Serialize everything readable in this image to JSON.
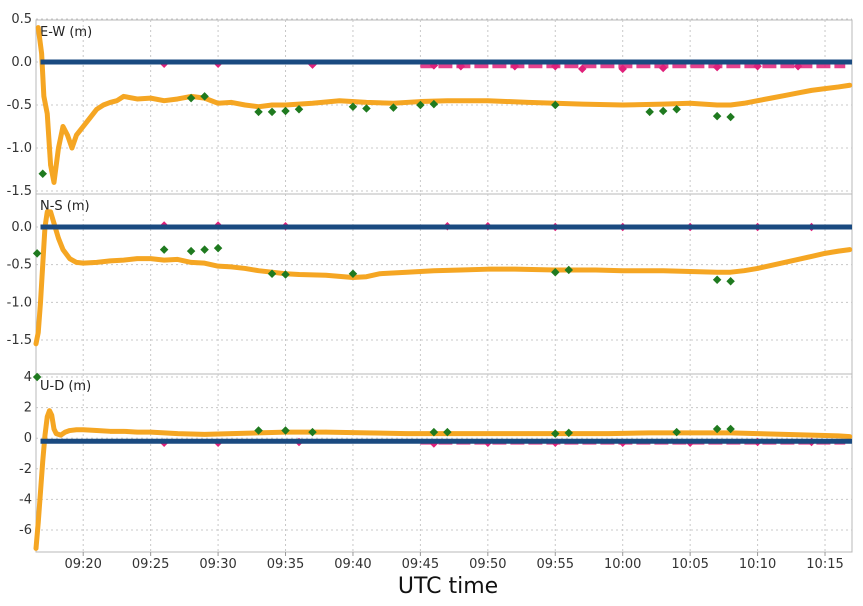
{
  "chart_data": {
    "type": "scatter",
    "xlabel": "UTC time",
    "x_range": [
      "09:16:30",
      "10:17:00"
    ],
    "x_ticks": [
      "09:20",
      "09:25",
      "09:30",
      "09:35",
      "09:40",
      "09:45",
      "09:50",
      "09:55",
      "10:00",
      "10:05",
      "10:10",
      "10:15"
    ],
    "grid": true,
    "colors": {
      "fix": "#f5a623",
      "float": "#1f7a1f",
      "ppp": "#e0207a",
      "reference": "#1a4a80"
    },
    "panels": [
      {
        "label": "E-W (m)",
        "ylim": [
          -1.5,
          0.5
        ],
        "yticks": [
          "0.5",
          "0.0",
          "-0.5",
          "-1.0",
          "-1.5"
        ],
        "series": [
          {
            "color": "fix",
            "x": [
              "09:16:40",
              "09:16:55",
              "09:17:05",
              "09:17:20",
              "09:17:35",
              "09:17:50",
              "09:18:10",
              "09:18:30",
              "09:18:50",
              "09:19:10",
              "09:19:30",
              "09:20:00",
              "09:20:30",
              "09:21:00",
              "09:21:30",
              "09:22:00",
              "09:22:30",
              "09:23:00",
              "09:24:00",
              "09:25:00",
              "09:26:00",
              "09:27:00",
              "09:28:00",
              "09:29:00",
              "09:30:00",
              "09:31:00",
              "09:32:00",
              "09:33:00",
              "09:34:00",
              "09:35:00",
              "09:37:00",
              "09:39:00",
              "09:41:00",
              "09:43:00",
              "09:45:00",
              "09:47:00",
              "09:50:00",
              "09:53:00",
              "09:55:00",
              "09:57:00",
              "10:00:00",
              "10:03:00",
              "10:05:00",
              "10:07:00",
              "10:08:00",
              "10:09:00",
              "10:10:00",
              "10:11:00",
              "10:12:00",
              "10:13:00",
              "10:14:00",
              "10:15:00",
              "10:16:00",
              "10:16:50"
            ],
            "y": [
              0.4,
              0.1,
              -0.4,
              -0.6,
              -1.2,
              -1.4,
              -1.0,
              -0.75,
              -0.85,
              -1.0,
              -0.85,
              -0.75,
              -0.65,
              -0.55,
              -0.5,
              -0.47,
              -0.45,
              -0.4,
              -0.43,
              -0.42,
              -0.45,
              -0.43,
              -0.4,
              -0.42,
              -0.48,
              -0.47,
              -0.5,
              -0.52,
              -0.5,
              -0.5,
              -0.48,
              -0.45,
              -0.47,
              -0.48,
              -0.46,
              -0.45,
              -0.45,
              -0.47,
              -0.48,
              -0.49,
              -0.5,
              -0.49,
              -0.48,
              -0.5,
              -0.5,
              -0.48,
              -0.45,
              -0.42,
              -0.39,
              -0.36,
              -0.33,
              -0.31,
              -0.29,
              -0.27
            ]
          },
          {
            "color": "float",
            "x": [
              "09:17:00",
              "09:28:00",
              "09:29:00",
              "09:33:00",
              "09:34:00",
              "09:35:00",
              "09:36:00",
              "09:40:00",
              "09:41:00",
              "09:43:00",
              "09:45:00",
              "09:46:00",
              "09:55:00",
              "10:02:00",
              "10:03:00",
              "10:04:00",
              "10:07:00",
              "10:08:00"
            ],
            "y": [
              -1.3,
              -0.42,
              -0.4,
              -0.58,
              -0.58,
              -0.57,
              -0.55,
              -0.52,
              -0.54,
              -0.53,
              -0.5,
              -0.49,
              -0.5,
              -0.58,
              -0.57,
              -0.55,
              -0.63,
              -0.64
            ]
          },
          {
            "color": "ppp",
            "x": [
              "09:26:00",
              "09:30:00",
              "09:37:00",
              "09:46:00",
              "09:48:00",
              "09:52:00",
              "09:55:00",
              "09:57:00",
              "10:00:00",
              "10:03:00",
              "10:07:00",
              "10:10:00",
              "10:13:00"
            ],
            "y": [
              -0.02,
              -0.02,
              -0.03,
              -0.04,
              -0.05,
              -0.05,
              -0.05,
              -0.08,
              -0.08,
              -0.07,
              -0.06,
              -0.05,
              -0.05
            ],
            "start": "09:45:00",
            "end": "10:16:30"
          },
          {
            "color": "reference",
            "x_start": "09:16:50",
            "x_end": "10:17:00",
            "y": [
              0.0
            ]
          }
        ]
      },
      {
        "label": "N-S (m)",
        "ylim": [
          -1.75,
          0.25
        ],
        "yticks": [
          "0.0",
          "-0.5",
          "-1.0",
          "-1.5"
        ],
        "series": [
          {
            "color": "fix",
            "x": [
              "09:16:30",
              "09:16:40",
              "09:16:50",
              "09:17:00",
              "09:17:10",
              "09:17:20",
              "09:17:35",
              "09:17:50",
              "09:18:10",
              "09:18:30",
              "09:19:00",
              "09:19:30",
              "09:20:00",
              "09:21:00",
              "09:22:00",
              "09:23:00",
              "09:24:00",
              "09:25:00",
              "09:26:00",
              "09:27:00",
              "09:28:00",
              "09:29:00",
              "09:30:00",
              "09:31:00",
              "09:32:00",
              "09:33:00",
              "09:34:00",
              "09:35:00",
              "09:36:00",
              "09:38:00",
              "09:40:00",
              "09:41:00",
              "09:42:00",
              "09:44:00",
              "09:46:00",
              "09:48:00",
              "09:50:00",
              "09:52:00",
              "09:55:00",
              "09:58:00",
              "10:00:00",
              "10:03:00",
              "10:05:00",
              "10:07:00",
              "10:08:00",
              "10:09:00",
              "10:10:00",
              "10:11:00",
              "10:12:00",
              "10:13:00",
              "10:14:00",
              "10:15:00",
              "10:16:00",
              "10:16:50"
            ],
            "y": [
              -1.55,
              -1.4,
              -1.0,
              -0.5,
              0.0,
              0.2,
              0.2,
              0.05,
              -0.15,
              -0.3,
              -0.42,
              -0.47,
              -0.48,
              -0.47,
              -0.45,
              -0.44,
              -0.42,
              -0.42,
              -0.44,
              -0.43,
              -0.47,
              -0.48,
              -0.52,
              -0.53,
              -0.55,
              -0.58,
              -0.6,
              -0.62,
              -0.63,
              -0.64,
              -0.67,
              -0.66,
              -0.62,
              -0.6,
              -0.58,
              -0.57,
              -0.56,
              -0.56,
              -0.57,
              -0.57,
              -0.58,
              -0.58,
              -0.59,
              -0.6,
              -0.6,
              -0.58,
              -0.55,
              -0.51,
              -0.47,
              -0.43,
              -0.39,
              -0.35,
              -0.32,
              -0.3
            ]
          },
          {
            "color": "float",
            "x": [
              "09:16:35",
              "09:26:00",
              "09:28:00",
              "09:29:00",
              "09:30:00",
              "09:34:00",
              "09:35:00",
              "09:40:00",
              "09:55:00",
              "09:56:00",
              "10:07:00",
              "10:08:00"
            ],
            "y": [
              -0.35,
              -0.3,
              -0.32,
              -0.3,
              -0.28,
              -0.62,
              -0.63,
              -0.62,
              -0.6,
              -0.57,
              -0.7,
              -0.72
            ]
          },
          {
            "color": "ppp",
            "x": [
              "09:26:00",
              "09:30:00",
              "09:35:00",
              "09:47:00",
              "09:50:00",
              "09:55:00",
              "10:00:00",
              "10:05:00",
              "10:10:00",
              "10:14:00"
            ],
            "y": [
              0.02,
              0.02,
              0.01,
              0.01,
              0.01,
              0.0,
              0.0,
              0.0,
              0.0,
              0.0
            ],
            "start": "09:45:00",
            "end": "10:16:30"
          },
          {
            "color": "reference",
            "x_start": "09:16:50",
            "x_end": "10:17:00",
            "y": [
              0.0
            ]
          }
        ]
      },
      {
        "label": "U-D (m)",
        "ylim": [
          -7.2,
          4
        ],
        "yticks": [
          "4",
          "2",
          "0",
          "-2",
          "-4",
          "-6"
        ],
        "series": [
          {
            "color": "fix",
            "x": [
              "09:16:30",
              "09:16:40",
              "09:16:50",
              "09:17:00",
              "09:17:10",
              "09:17:20",
              "09:17:30",
              "09:17:40",
              "09:17:50",
              "09:18:00",
              "09:18:20",
              "09:18:40",
              "09:19:00",
              "09:19:30",
              "09:20:00",
              "09:21:00",
              "09:22:00",
              "09:23:00",
              "09:24:00",
              "09:25:00",
              "09:27:00",
              "09:29:00",
              "09:31:00",
              "09:33:00",
              "09:35:00",
              "09:38:00",
              "09:41:00",
              "09:44:00",
              "09:47:00",
              "09:50:00",
              "09:53:00",
              "09:56:00",
              "09:59:00",
              "10:02:00",
              "10:05:00",
              "10:08:00",
              "10:10:00",
              "10:12:00",
              "10:14:00",
              "10:16:00",
              "10:16:50"
            ],
            "y": [
              -7.2,
              -5.5,
              -3.5,
              -1.5,
              0.2,
              1.4,
              1.8,
              1.5,
              0.6,
              0.3,
              0.2,
              0.4,
              0.5,
              0.55,
              0.55,
              0.5,
              0.45,
              0.45,
              0.4,
              0.4,
              0.3,
              0.25,
              0.3,
              0.35,
              0.4,
              0.4,
              0.35,
              0.3,
              0.3,
              0.3,
              0.3,
              0.3,
              0.3,
              0.35,
              0.35,
              0.35,
              0.3,
              0.25,
              0.2,
              0.15,
              0.1
            ]
          },
          {
            "color": "float",
            "x": [
              "09:16:35",
              "09:33:00",
              "09:35:00",
              "09:37:00",
              "09:46:00",
              "09:47:00",
              "09:55:00",
              "09:56:00",
              "10:04:00",
              "10:07:00",
              "10:08:00"
            ],
            "y": [
              4.0,
              0.5,
              0.5,
              0.4,
              0.4,
              0.4,
              0.3,
              0.35,
              0.4,
              0.6,
              0.6
            ]
          },
          {
            "color": "ppp",
            "x": [
              "09:26:00",
              "09:30:00",
              "09:36:00",
              "09:46:00",
              "09:50:00",
              "09:55:00",
              "10:00:00",
              "10:05:00",
              "10:10:00",
              "10:14:00"
            ],
            "y": [
              -0.3,
              -0.3,
              -0.25,
              -0.35,
              -0.3,
              -0.3,
              -0.3,
              -0.3,
              -0.25,
              -0.25
            ],
            "start": "09:45:00",
            "end": "10:16:30"
          },
          {
            "color": "reference",
            "x_start": "09:16:50",
            "x_end": "10:17:00",
            "y": [
              -0.2
            ]
          }
        ]
      }
    ]
  }
}
